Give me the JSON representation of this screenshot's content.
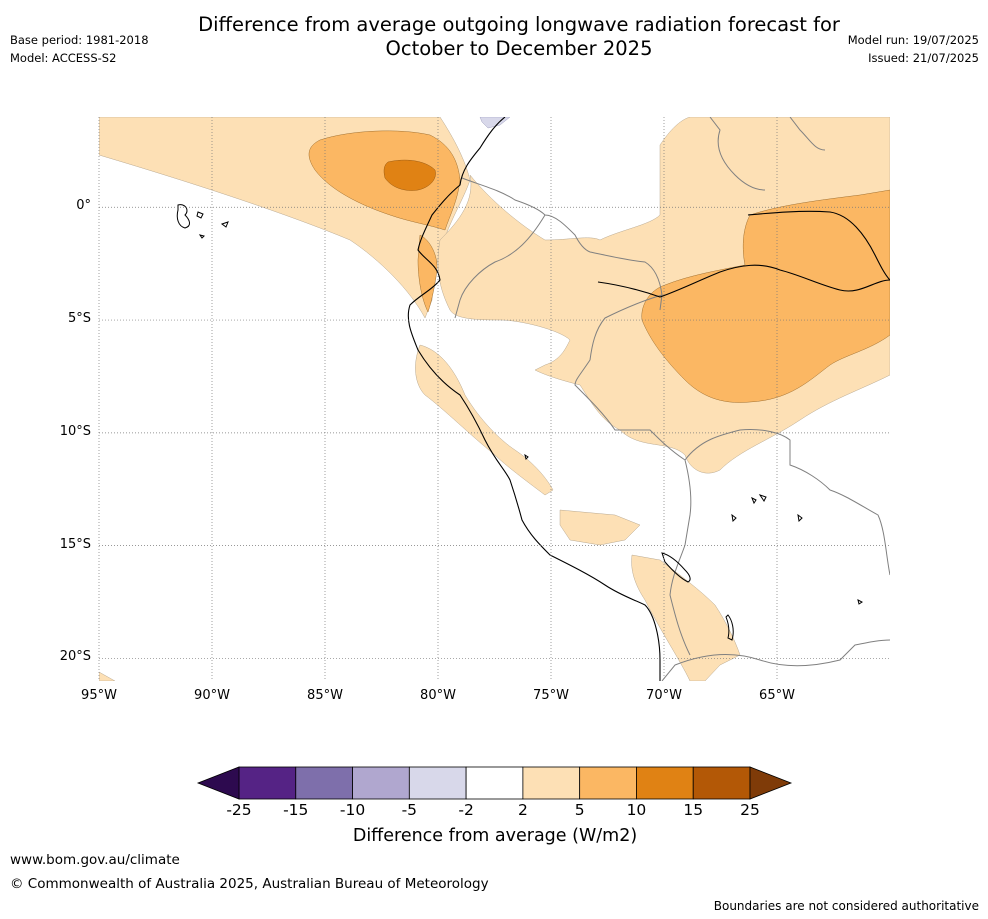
{
  "title": "Difference from average outgoing longwave radiation forecast for\nOctober to December 2025",
  "meta": {
    "base_period": "Base period: 1981-2018",
    "model": "Model: ACCESS-S2",
    "model_run": "Model run: 19/07/2025",
    "issued": "Issued: 21/07/2025"
  },
  "map": {
    "lon_range": [
      -95,
      -60
    ],
    "lat_range": [
      -21,
      4
    ],
    "lat_ticks": [
      {
        "value": 0,
        "label": "0°"
      },
      {
        "value": -5,
        "label": "5°S"
      },
      {
        "value": -10,
        "label": "10°S"
      },
      {
        "value": -15,
        "label": "15°S"
      },
      {
        "value": -20,
        "label": "20°S"
      }
    ],
    "lon_ticks": [
      {
        "value": -95,
        "label": "95°W"
      },
      {
        "value": -90,
        "label": "90°W"
      },
      {
        "value": -85,
        "label": "85°W"
      },
      {
        "value": -80,
        "label": "80°W"
      },
      {
        "value": -75,
        "label": "75°W"
      },
      {
        "value": -70,
        "label": "70°W"
      },
      {
        "value": -65,
        "label": "65°W"
      }
    ],
    "grid": "dotted"
  },
  "colorbar": {
    "title": "Difference from average (W/m2)",
    "levels": [
      "-25",
      "-15",
      "-10",
      "-5",
      "-2",
      "2",
      "5",
      "10",
      "15",
      "25"
    ],
    "colors": {
      "below_min": "#2d0a4f",
      "bins": [
        "#552385",
        "#7e6fab",
        "#b0a7cf",
        "#d8d8ea",
        "#ffffff",
        "#fde0b5",
        "#fbb763",
        "#e08214",
        "#b35806"
      ],
      "above_max": "#7f3b08"
    }
  },
  "footer": {
    "url": "www.bom.gov.au/climate",
    "copyright": "© Commonwealth of Australia 2025, Australian Bureau of Meteorology",
    "note": "Boundaries are not considered authoritative"
  }
}
